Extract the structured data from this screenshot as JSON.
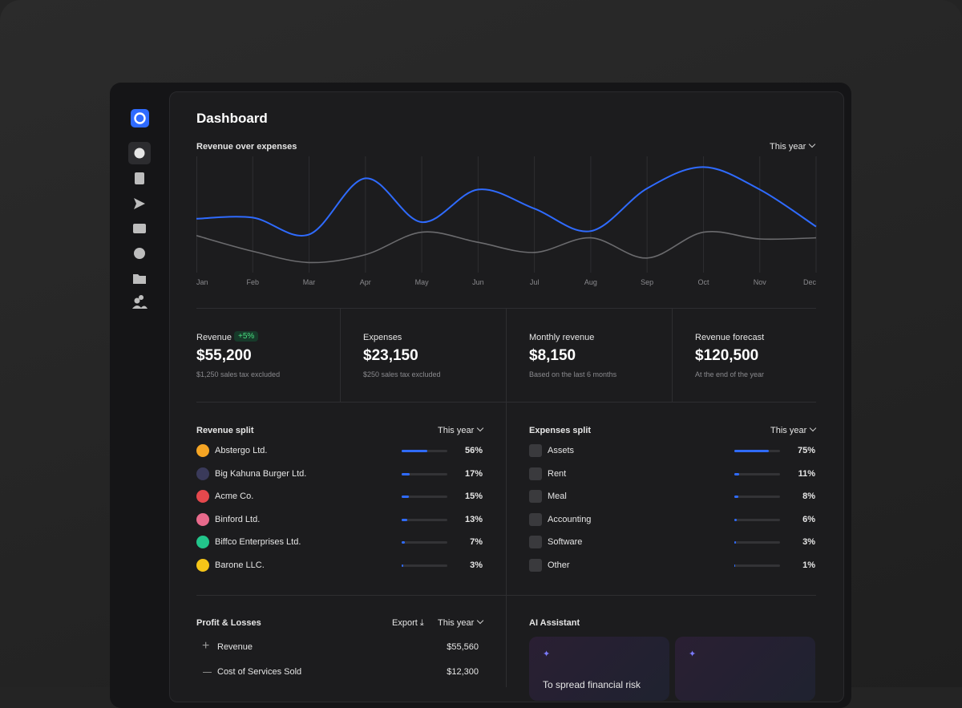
{
  "header": {
    "title": "Dashboard"
  },
  "chart_data": {
    "type": "line",
    "title": "Revenue over expenses",
    "period": "This year",
    "categories": [
      "Jan",
      "Feb",
      "Mar",
      "Apr",
      "May",
      "Jun",
      "Jul",
      "Aug",
      "Sep",
      "Oct",
      "Nov",
      "Dec"
    ],
    "series": [
      {
        "color": "#2f6bff",
        "values": [
          48,
          49,
          34,
          84,
          45,
          74,
          57,
          37,
          75,
          94,
          74,
          41
        ]
      },
      {
        "color": "#6b6b6e",
        "values": [
          33,
          19,
          9,
          16,
          36,
          27,
          18,
          31,
          13,
          36,
          30,
          31
        ]
      }
    ],
    "ylim": [
      0,
      100
    ],
    "grid": true
  },
  "stats": [
    {
      "label": "Revenue",
      "badge": "+5%",
      "value": "$55,200",
      "note": "$1,250 sales tax excluded"
    },
    {
      "label": "Expenses",
      "value": "$23,150",
      "note": "$250 sales tax excluded"
    },
    {
      "label": "Monthly revenue",
      "value": "$8,150",
      "note": "Based on the last 6 months"
    },
    {
      "label": "Revenue forecast",
      "value": "$120,500",
      "note": "At the end of the year"
    }
  ],
  "revenue_split": {
    "title": "Revenue split",
    "period": "This year",
    "names": [
      "Abstergo Ltd.",
      "Big Kahuna Burger Ltd.",
      "Acme Co.",
      "Binford Ltd.",
      "Biffco Enterprises Ltd.",
      "Barone LLC."
    ],
    "values": [
      56,
      17,
      15,
      13,
      7,
      3
    ],
    "value_labels": [
      "56%",
      "17%",
      "15%",
      "13%",
      "7%",
      "3%"
    ]
  },
  "expenses_split": {
    "title": "Expenses split",
    "period": "This year",
    "names": [
      "Assets",
      "Rent",
      "Meal",
      "Accounting",
      "Software",
      "Other"
    ],
    "values": [
      75,
      11,
      8,
      6,
      3,
      1
    ],
    "value_labels": [
      "75%",
      "11%",
      "8%",
      "6%",
      "3%",
      "1%"
    ]
  },
  "profit_losses": {
    "title": "Profit & Losses",
    "export": "Export",
    "period": "This year",
    "rows": [
      {
        "label": "Revenue",
        "value": "$55,560"
      },
      {
        "label": "Cost of Services Sold",
        "value": "$12,300"
      }
    ]
  },
  "ai_assistant": {
    "title": "AI Assistant",
    "cards": [
      "To spread financial risk"
    ]
  }
}
